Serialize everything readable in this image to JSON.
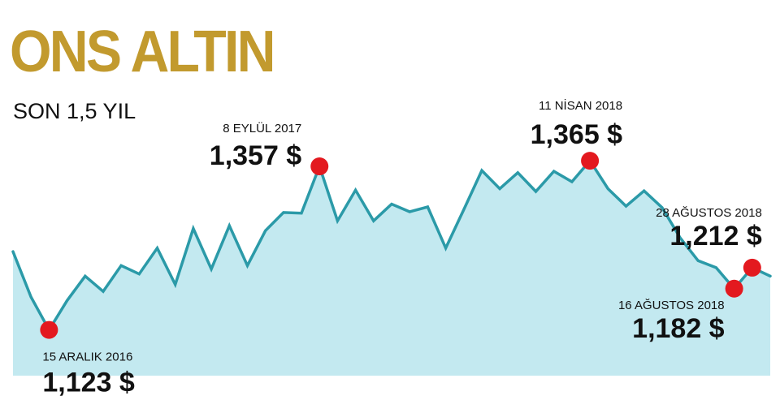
{
  "title": "ONS ALTIN",
  "subtitle": "SON 1,5 YIL",
  "colors": {
    "title": "#c29a2e",
    "line": "#2b9aa8",
    "area": "#c3e9f0",
    "marker": "#e3191f"
  },
  "chart_data": {
    "type": "area",
    "title": "ONS ALTIN",
    "subtitle": "SON 1,5 YIL",
    "x_start": "2016-12",
    "x_end": "2018-08",
    "ylim": [
      1090,
      1400
    ],
    "grid": false,
    "series": [
      {
        "values": [
          1235,
          1170,
          1123,
          1165,
          1200,
          1178,
          1215,
          1203,
          1240,
          1188,
          1268,
          1210,
          1272,
          1215,
          1265,
          1291,
          1290,
          1357,
          1279,
          1323,
          1279,
          1303,
          1292,
          1299,
          1240,
          1295,
          1351,
          1325,
          1348,
          1321,
          1350,
          1335,
          1365,
          1325,
          1300,
          1322,
          1298,
          1255,
          1222,
          1212,
          1182,
          1212,
          1200
        ]
      }
    ],
    "annotations": [
      {
        "index": 2,
        "date": "15 ARALIK 2016",
        "value": "1,123 $"
      },
      {
        "index": 17,
        "date": "8 EYLÜL 2017",
        "value": "1,357 $"
      },
      {
        "index": 32,
        "date": "11 NİSAN 2018",
        "value": "1,365 $"
      },
      {
        "index": 40,
        "date": "16 AĞUSTOS 2018",
        "value": "1,182 $"
      },
      {
        "index": 41,
        "date": "28 AĞUSTOS 2018",
        "value": "1,212 $"
      }
    ]
  }
}
